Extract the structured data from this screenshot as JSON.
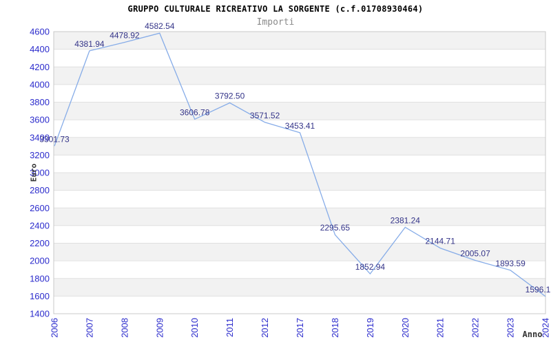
{
  "header": {
    "title": "GRUPPO CULTURALE RICREATIVO LA SORGENTE (c.f.01708930464)",
    "subtitle": "Importi"
  },
  "chart_data": {
    "type": "line",
    "title": "GRUPPO CULTURALE RICREATIVO LA SORGENTE (c.f.01708930464)",
    "subtitle": "Importi",
    "xlabel": "Anno",
    "ylabel": "Euro",
    "categories": [
      "2006",
      "2007",
      "2008",
      "2009",
      "2010",
      "2011",
      "2012",
      "2017",
      "2018",
      "2019",
      "2020",
      "2021",
      "2022",
      "2023",
      "2024"
    ],
    "values": [
      3301.73,
      4381.94,
      4478.92,
      4582.54,
      3606.78,
      3792.5,
      3571.52,
      3453.41,
      2295.65,
      1852.94,
      2381.24,
      2144.71,
      2005.07,
      1893.59,
      1596.1
    ],
    "point_labels": [
      "3301.73",
      "4381.94",
      "4478.92",
      "4582.54",
      "3606.78",
      "3792.50",
      "3571.52",
      "3453.41",
      "2295.65",
      "1852.94",
      "2381.24",
      "2144.71",
      "2005.07",
      "1893.59",
      "1596.1"
    ],
    "ylim": [
      1400,
      4600
    ],
    "ytick_step": 200,
    "grid": "horizontal-bands-alternating",
    "legend_position": "none",
    "colors": {
      "line": "#86ace8",
      "point_label": "#333388",
      "tick_label": "#2b2bcc",
      "band": "#f2f2f2",
      "gridline": "#e0e0e0",
      "plot_border": "#c8c8c8",
      "title": "#000000",
      "subtitle": "#8a8a8a",
      "axis_title": "#333333"
    }
  }
}
